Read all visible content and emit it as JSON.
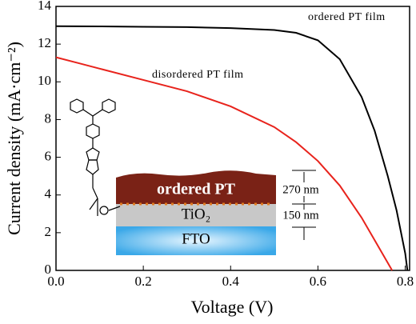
{
  "chart_data": {
    "type": "line",
    "xlabel": "Voltage (V)",
    "ylabel": "Current density (mA·cm⁻²)",
    "xlim": [
      0,
      0.81
    ],
    "ylim": [
      0,
      14
    ],
    "xticks": [
      {
        "value": 0,
        "label": "0.0"
      },
      0.2,
      0.4,
      0.6,
      0.8
    ],
    "yticks": [
      0,
      2,
      4,
      6,
      8,
      10,
      12,
      14
    ],
    "series": [
      {
        "name": "ordered PT film",
        "color": "#000000",
        "x": [
          0,
          0.1,
          0.2,
          0.3,
          0.4,
          0.5,
          0.55,
          0.6,
          0.65,
          0.7,
          0.73,
          0.76,
          0.78,
          0.8,
          0.805
        ],
        "values": [
          12.95,
          12.94,
          12.92,
          12.9,
          12.85,
          12.75,
          12.6,
          12.2,
          11.2,
          9.2,
          7.4,
          5.0,
          3.2,
          0.9,
          0
        ]
      },
      {
        "name": "disordered PT film",
        "color": "#e8231c",
        "x": [
          0,
          0.05,
          0.1,
          0.2,
          0.3,
          0.4,
          0.5,
          0.55,
          0.6,
          0.65,
          0.7,
          0.73,
          0.75,
          0.77
        ],
        "values": [
          11.3,
          11.0,
          10.7,
          10.1,
          9.5,
          8.7,
          7.6,
          6.8,
          5.8,
          4.5,
          2.8,
          1.6,
          0.8,
          0
        ]
      }
    ],
    "inset": {
      "layers": [
        "ordered PT",
        "TiO₂",
        "FTO"
      ],
      "thicknesses": [
        "270 nm",
        "150 nm"
      ]
    }
  }
}
